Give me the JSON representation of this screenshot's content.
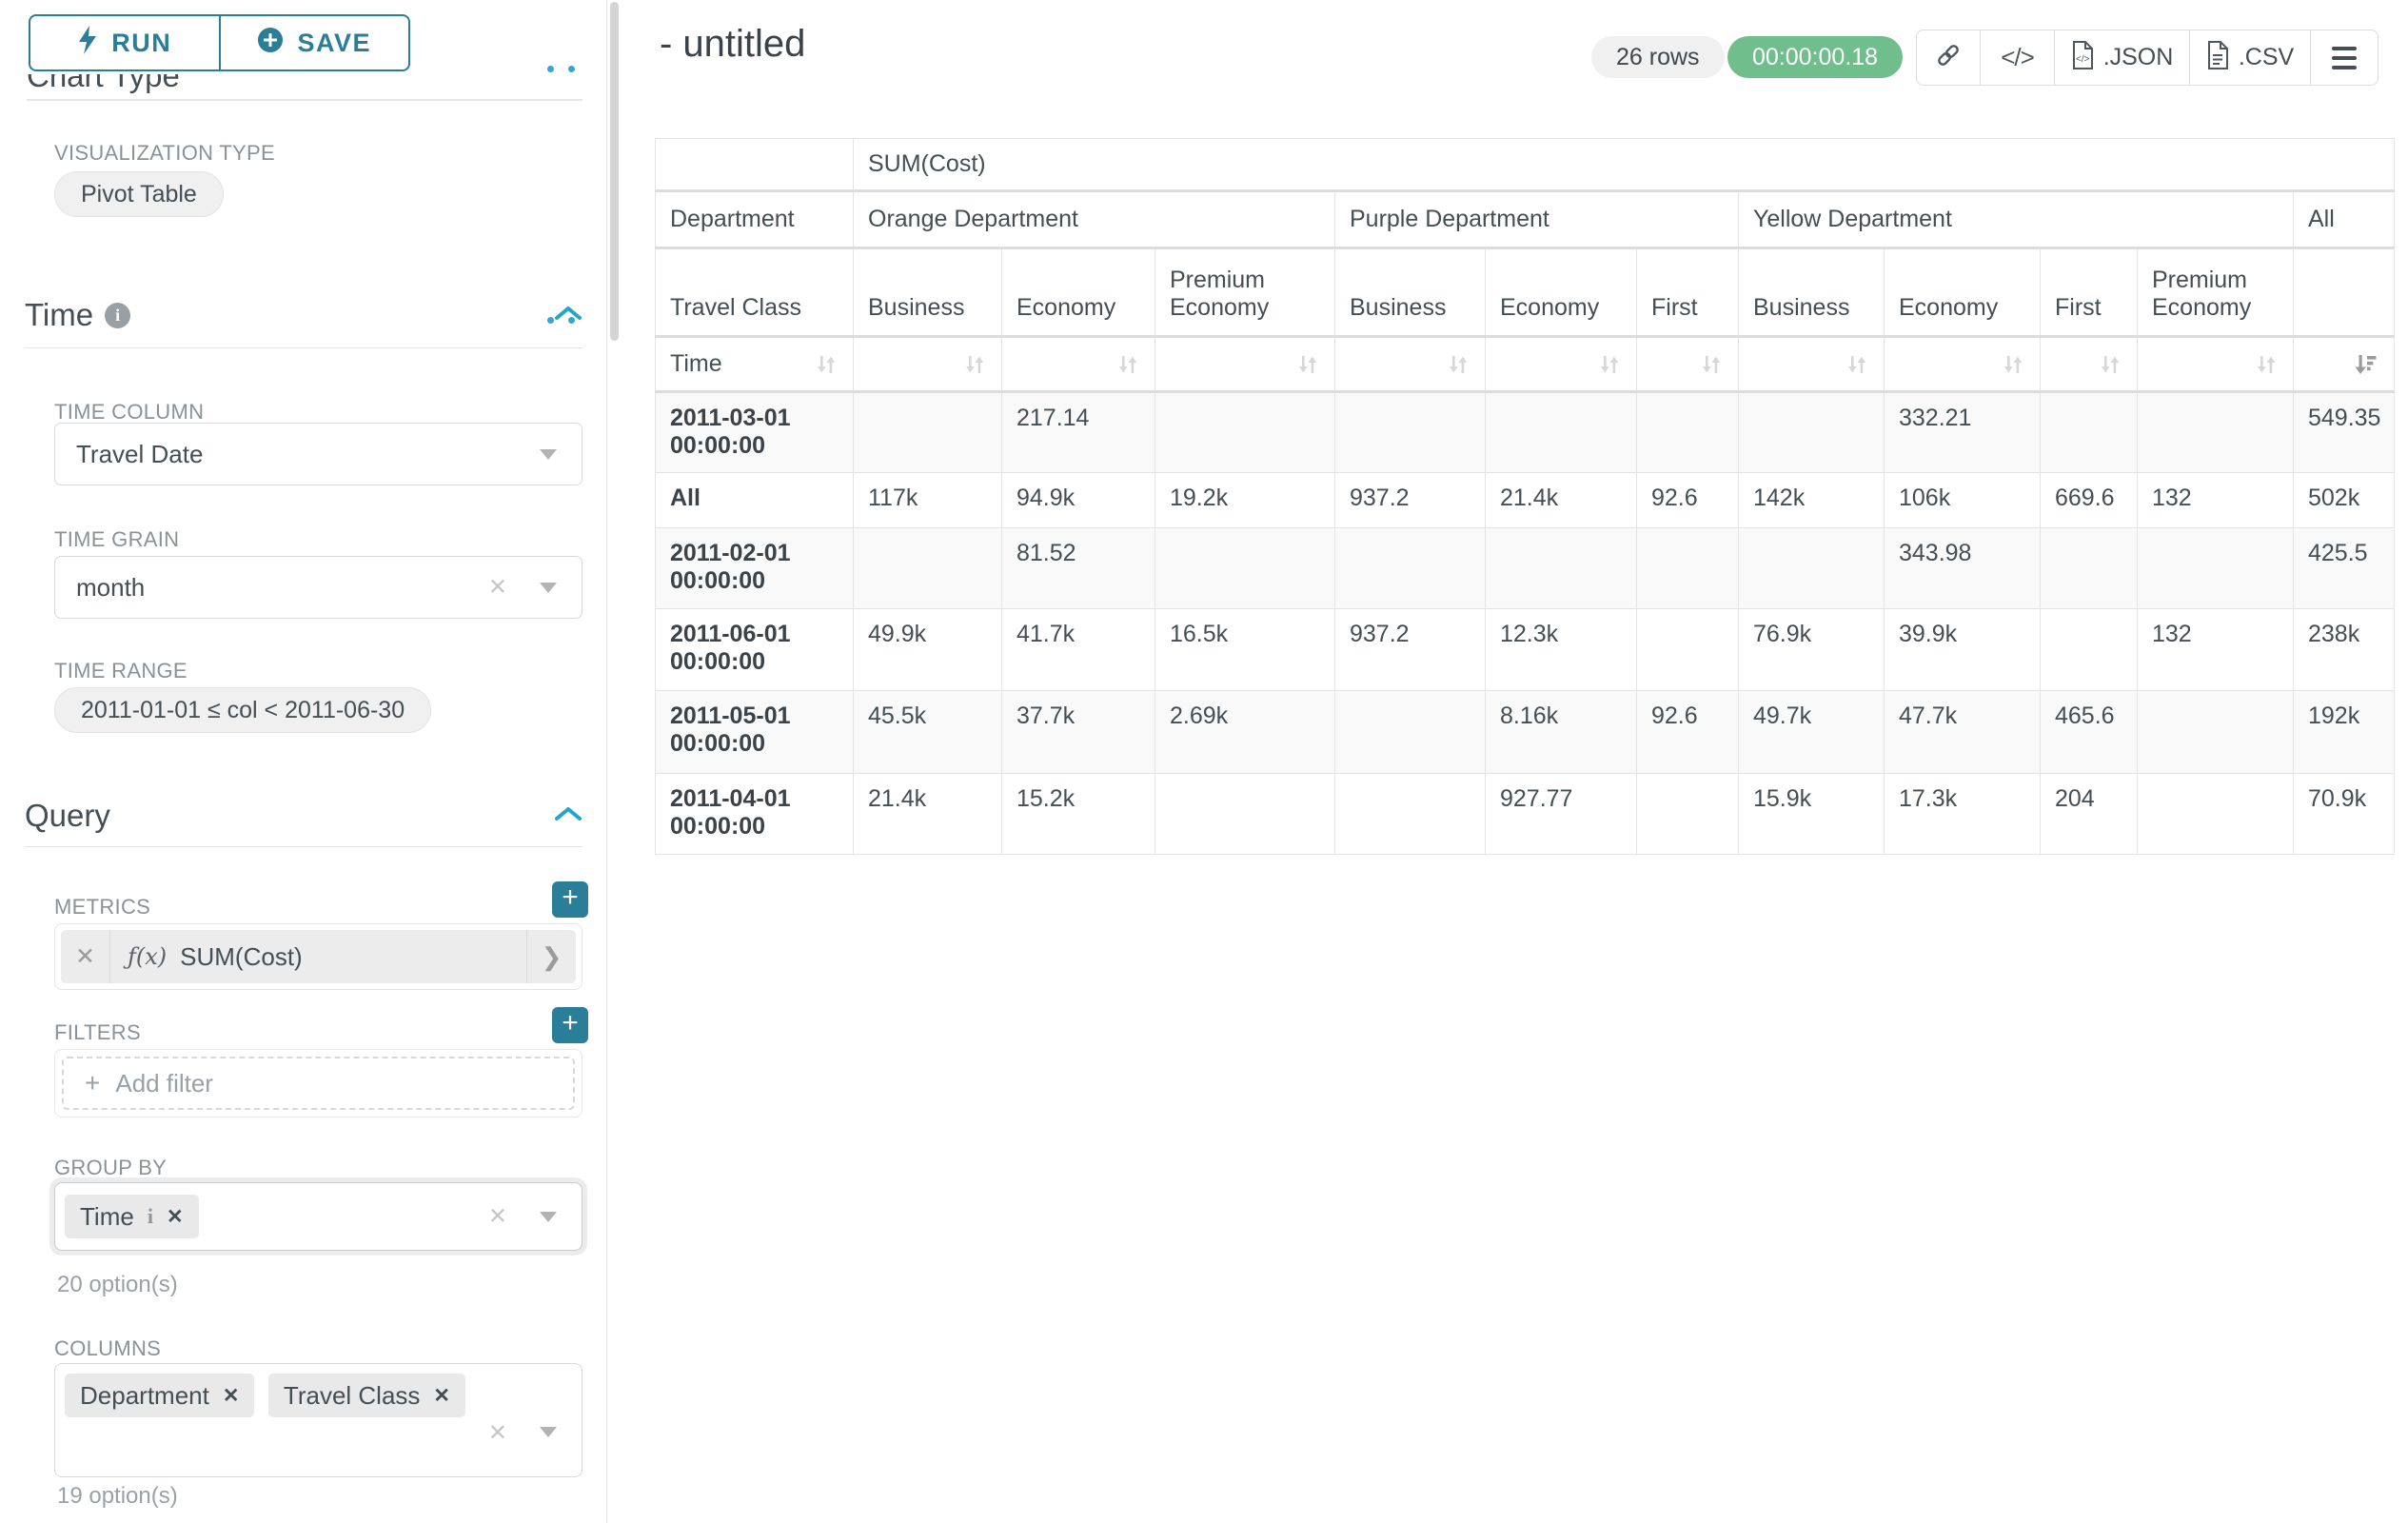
{
  "colors": {
    "primary": "#2b7e97",
    "accent": "#20a7c9",
    "success": "#6fbe8c"
  },
  "sidebar": {
    "toolbar": {
      "run": "RUN",
      "save": "SAVE"
    },
    "section_chart_type": "Chart Type",
    "visualization_type": {
      "label": "VISUALIZATION TYPE",
      "value": "Pivot Table"
    },
    "time": {
      "heading": "Time",
      "time_column": {
        "label": "TIME COLUMN",
        "value": "Travel Date"
      },
      "time_grain": {
        "label": "TIME GRAIN",
        "value": "month"
      },
      "time_range": {
        "label": "TIME RANGE",
        "value": "2011-01-01 ≤ col < 2011-06-30"
      }
    },
    "query": {
      "heading": "Query",
      "metrics": {
        "label": "METRICS",
        "fx": "ƒ(x)",
        "value": "SUM(Cost)"
      },
      "filters": {
        "label": "FILTERS",
        "placeholder": "Add filter"
      },
      "group_by": {
        "label": "GROUP BY",
        "pills": [
          {
            "label": "Time"
          }
        ],
        "options_hint": "20 option(s)"
      },
      "columns": {
        "label": "COLUMNS",
        "pills": [
          {
            "label": "Department"
          },
          {
            "label": "Travel Class"
          }
        ],
        "options_hint": "19 option(s)"
      }
    }
  },
  "header": {
    "title": "- untitled",
    "row_count": "26 rows",
    "timer": "00:00:00.18",
    "export_json_label": ".JSON",
    "export_csv_label": ".CSV"
  },
  "pivot": {
    "metric_label": "SUM(Cost)",
    "corner_col_label": "Department",
    "corner_subcol_label": "Travel Class",
    "corner_row_label": "Time",
    "groups": [
      {
        "label": "Orange Department",
        "cols": [
          "Business",
          "Economy",
          "Premium Economy"
        ]
      },
      {
        "label": "Purple Department",
        "cols": [
          "Business",
          "Economy",
          "First"
        ]
      },
      {
        "label": "Yellow Department",
        "cols": [
          "Business",
          "Economy",
          "First",
          "Premium Economy"
        ]
      },
      {
        "label": "All",
        "cols": [
          ""
        ]
      }
    ],
    "rows": [
      {
        "label": "2011-03-01 00:00:00",
        "values": [
          "",
          "217.14",
          "",
          "",
          "",
          "",
          "",
          "332.21",
          "",
          "",
          "549.35"
        ]
      },
      {
        "label": "All",
        "values": [
          "117k",
          "94.9k",
          "19.2k",
          "937.2",
          "21.4k",
          "92.6",
          "142k",
          "106k",
          "669.6",
          "132",
          "502k"
        ]
      },
      {
        "label": "2011-02-01 00:00:00",
        "values": [
          "",
          "81.52",
          "",
          "",
          "",
          "",
          "",
          "343.98",
          "",
          "",
          "425.5"
        ]
      },
      {
        "label": "2011-06-01 00:00:00",
        "values": [
          "49.9k",
          "41.7k",
          "16.5k",
          "937.2",
          "12.3k",
          "",
          "76.9k",
          "39.9k",
          "",
          "132",
          "238k"
        ]
      },
      {
        "label": "2011-05-01 00:00:00",
        "values": [
          "45.5k",
          "37.7k",
          "2.69k",
          "",
          "8.16k",
          "92.6",
          "49.7k",
          "47.7k",
          "465.6",
          "",
          "192k"
        ]
      },
      {
        "label": "2011-04-01 00:00:00",
        "values": [
          "21.4k",
          "15.2k",
          "",
          "",
          "927.77",
          "",
          "15.9k",
          "17.3k",
          "204",
          "",
          "70.9k"
        ]
      }
    ]
  }
}
